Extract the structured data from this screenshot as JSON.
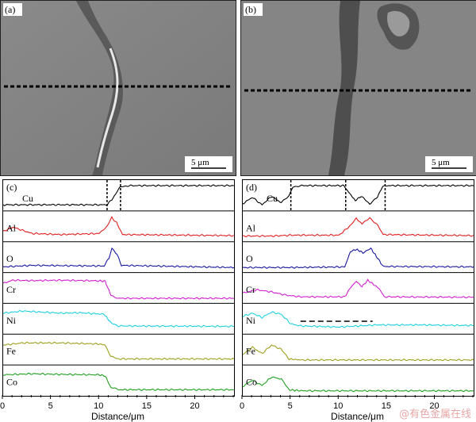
{
  "images": {
    "a": {
      "label": "(a)",
      "scalebar": "5 μm"
    },
    "b": {
      "label": "(b)",
      "scalebar": "5 μm"
    }
  },
  "panels": {
    "c": {
      "label": "(c)"
    },
    "d": {
      "label": "(d)"
    }
  },
  "xaxis": {
    "label": "Distance/μm",
    "ticks": [
      "0",
      "5",
      "10",
      "15",
      "20"
    ]
  },
  "watermark": "@有色金属在线",
  "chart_data": [
    {
      "type": "line",
      "title": "(c)",
      "xlabel": "Distance/μm",
      "xlim": [
        0,
        24
      ],
      "series": [
        {
          "name": "Cu",
          "color": "#000000",
          "points": [
            [
              0,
              0.1
            ],
            [
              10.8,
              0.1
            ],
            [
              11.3,
              0.35
            ],
            [
              12.2,
              0.95
            ],
            [
              13,
              1
            ],
            [
              24,
              1
            ]
          ]
        },
        {
          "name": "Al",
          "color": "#e02020",
          "points": [
            [
              0,
              0.3
            ],
            [
              1,
              0.5
            ],
            [
              2,
              0.35
            ],
            [
              3,
              0.2
            ],
            [
              6,
              0.15
            ],
            [
              10,
              0.2
            ],
            [
              10.8,
              0.55
            ],
            [
              11.3,
              0.95
            ],
            [
              11.8,
              0.7
            ],
            [
              12.4,
              0.15
            ],
            [
              24,
              0.1
            ]
          ]
        },
        {
          "name": "O",
          "color": "#1a1aa0",
          "points": [
            [
              0,
              0.08
            ],
            [
              3,
              0.15
            ],
            [
              10.5,
              0.12
            ],
            [
              11,
              0.5
            ],
            [
              11.3,
              0.95
            ],
            [
              11.8,
              0.7
            ],
            [
              12.3,
              0.15
            ],
            [
              24,
              0.05
            ]
          ]
        },
        {
          "name": "Cr",
          "color": "#d020d0",
          "points": [
            [
              0,
              0.75
            ],
            [
              1,
              0.9
            ],
            [
              3,
              0.88
            ],
            [
              6,
              0.9
            ],
            [
              10,
              0.87
            ],
            [
              10.6,
              0.85
            ],
            [
              11.2,
              0.2
            ],
            [
              12,
              0.05
            ],
            [
              24,
              0.05
            ]
          ]
        },
        {
          "name": "Ni",
          "color": "#20d0e0",
          "points": [
            [
              0,
              0.8
            ],
            [
              2,
              0.9
            ],
            [
              4,
              0.85
            ],
            [
              6,
              0.8
            ],
            [
              8,
              0.82
            ],
            [
              10.5,
              0.75
            ],
            [
              11.2,
              0.35
            ],
            [
              12,
              0.2
            ],
            [
              24,
              0.18
            ]
          ]
        },
        {
          "name": "Fe",
          "color": "#a0a020",
          "points": [
            [
              0,
              0.75
            ],
            [
              2,
              0.85
            ],
            [
              6,
              0.85
            ],
            [
              10,
              0.8
            ],
            [
              10.6,
              0.75
            ],
            [
              11.2,
              0.2
            ],
            [
              12,
              0.1
            ],
            [
              24,
              0.1
            ]
          ]
        },
        {
          "name": "Co",
          "color": "#20a020",
          "points": [
            [
              0,
              0.8
            ],
            [
              3,
              0.85
            ],
            [
              6,
              0.82
            ],
            [
              10,
              0.8
            ],
            [
              10.6,
              0.75
            ],
            [
              11.2,
              0.2
            ],
            [
              12,
              0.1
            ],
            [
              24,
              0.1
            ]
          ]
        }
      ]
    },
    {
      "type": "line",
      "title": "(d)",
      "xlabel": "Distance/μm",
      "xlim": [
        0,
        24
      ],
      "series": [
        {
          "name": "Cu",
          "color": "#000000",
          "points": [
            [
              0,
              0.15
            ],
            [
              1,
              0.45
            ],
            [
              2,
              0.1
            ],
            [
              3,
              0.5
            ],
            [
              4,
              0.2
            ],
            [
              4.8,
              0.5
            ],
            [
              5.2,
              0.95
            ],
            [
              6,
              1
            ],
            [
              10.5,
              1
            ],
            [
              11,
              0.7
            ],
            [
              11.7,
              0.3
            ],
            [
              12.3,
              0.5
            ],
            [
              13.2,
              0.15
            ],
            [
              14,
              0.45
            ],
            [
              14.5,
              0.95
            ],
            [
              15,
              1
            ],
            [
              24,
              1
            ]
          ]
        },
        {
          "name": "Al",
          "color": "#e02020",
          "points": [
            [
              0,
              0.08
            ],
            [
              3,
              0.08
            ],
            [
              5,
              0.12
            ],
            [
              10,
              0.12
            ],
            [
              11,
              0.5
            ],
            [
              11.8,
              0.9
            ],
            [
              12.4,
              0.65
            ],
            [
              13.2,
              0.95
            ],
            [
              14,
              0.6
            ],
            [
              14.6,
              0.15
            ],
            [
              24,
              0.1
            ]
          ]
        },
        {
          "name": "O",
          "color": "#1a1aa0",
          "points": [
            [
              0,
              0.05
            ],
            [
              5,
              0.05
            ],
            [
              10.6,
              0.08
            ],
            [
              11.2,
              0.8
            ],
            [
              11.8,
              0.9
            ],
            [
              12.5,
              0.75
            ],
            [
              13.3,
              0.95
            ],
            [
              14,
              0.5
            ],
            [
              14.6,
              0.1
            ],
            [
              24,
              0.08
            ]
          ]
        },
        {
          "name": "Cr",
          "color": "#d020d0",
          "points": [
            [
              0,
              0.3
            ],
            [
              1.5,
              0.45
            ],
            [
              3,
              0.35
            ],
            [
              4.5,
              0.2
            ],
            [
              6,
              0.12
            ],
            [
              10.6,
              0.12
            ],
            [
              11.2,
              0.55
            ],
            [
              11.8,
              0.85
            ],
            [
              12.4,
              0.6
            ],
            [
              13,
              0.9
            ],
            [
              13.6,
              0.7
            ],
            [
              14.2,
              0.5
            ],
            [
              14.7,
              0.12
            ],
            [
              24,
              0.1
            ]
          ]
        },
        {
          "name": "Ni",
          "color": "#20d0e0",
          "points": [
            [
              0,
              0.65
            ],
            [
              1,
              0.8
            ],
            [
              2,
              0.6
            ],
            [
              3,
              0.85
            ],
            [
              4,
              0.75
            ],
            [
              5,
              0.3
            ],
            [
              6,
              0.2
            ],
            [
              10,
              0.15
            ],
            [
              12,
              0.2
            ],
            [
              14,
              0.25
            ],
            [
              18,
              0.25
            ],
            [
              24,
              0.22
            ]
          ]
        },
        {
          "name": "Fe",
          "color": "#a0a020",
          "points": [
            [
              0,
              0.3
            ],
            [
              1,
              0.65
            ],
            [
              2,
              0.35
            ],
            [
              3,
              0.75
            ],
            [
              4,
              0.55
            ],
            [
              4.8,
              0.1
            ],
            [
              6,
              0.05
            ],
            [
              24,
              0.05
            ]
          ]
        },
        {
          "name": "Co",
          "color": "#20a020",
          "points": [
            [
              0,
              0.25
            ],
            [
              1,
              0.55
            ],
            [
              2,
              0.3
            ],
            [
              3,
              0.7
            ],
            [
              4,
              0.6
            ],
            [
              4.8,
              0.1
            ],
            [
              6,
              0.05
            ],
            [
              24,
              0.05
            ]
          ]
        }
      ]
    }
  ]
}
